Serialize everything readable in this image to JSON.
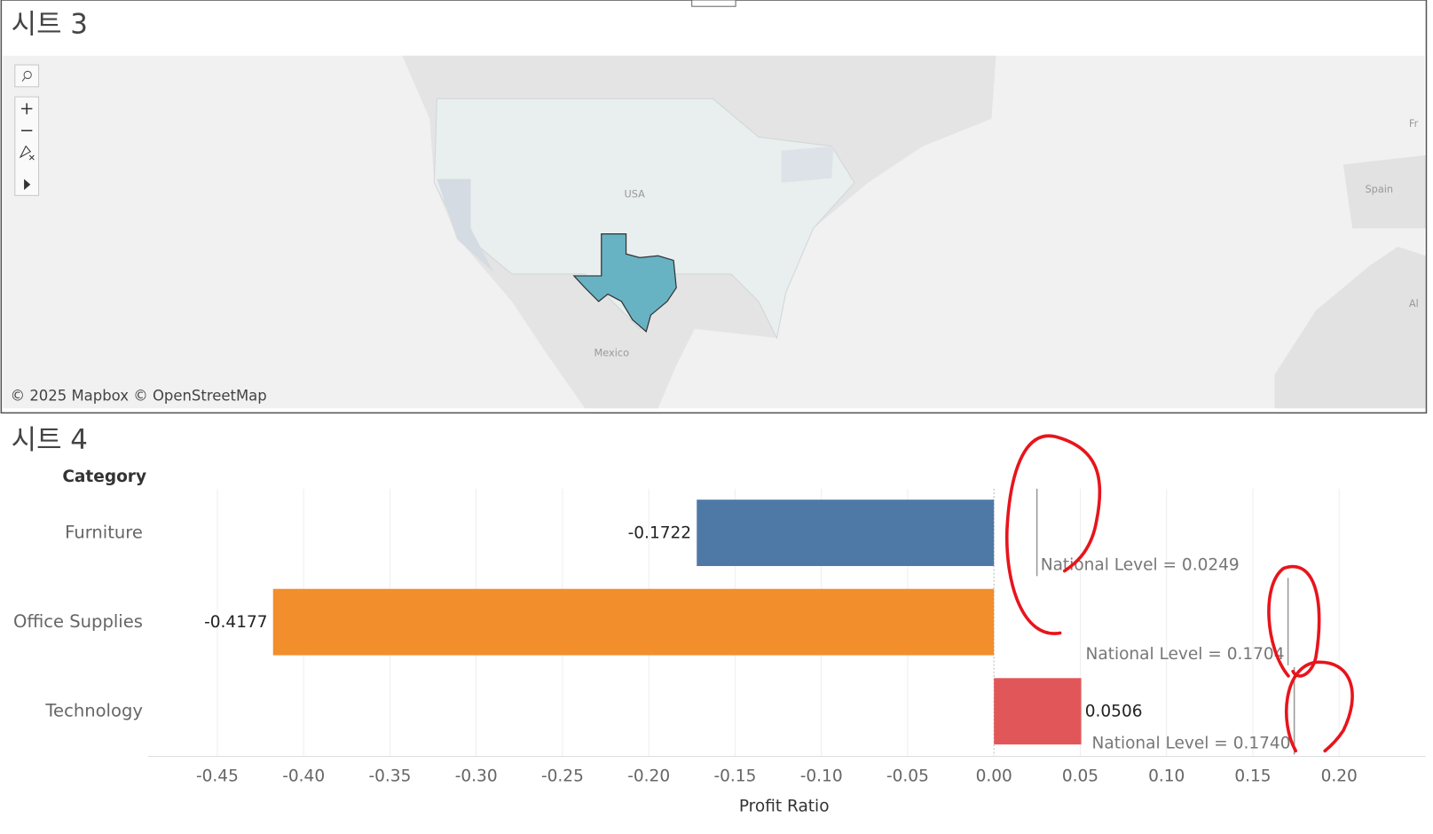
{
  "map_panel": {
    "title": "시트 3",
    "labels": [
      "USA",
      "Mexico",
      "Spain",
      "Fr",
      "Al"
    ],
    "attribution": "© 2025 Mapbox © OpenStreetMap"
  },
  "chart_data": {
    "type": "bar",
    "orientation": "horizontal",
    "title": "시트 4",
    "y_label": "Category",
    "x_label": "Profit Ratio",
    "categories": [
      "Furniture",
      "Office Supplies",
      "Technology"
    ],
    "values": [
      -0.1722,
      -0.4177,
      0.0506
    ],
    "colors": [
      "#4e79a7",
      "#f28e2b",
      "#e15759"
    ],
    "reference_lines": {
      "values": [
        0.0249,
        0.1704,
        0.174
      ],
      "value_labels": [
        "National Level = 0.0249",
        "National Level = 0.1704",
        "National Level = 0.1740"
      ],
      "color": "#999999"
    },
    "xlim": [
      -0.49,
      0.25
    ],
    "xticks": [
      {
        "value": -0.45,
        "label": "-0.45"
      },
      {
        "value": -0.4,
        "label": "-0.40"
      },
      {
        "value": -0.35,
        "label": "-0.35"
      },
      {
        "value": -0.3,
        "label": "-0.30"
      },
      {
        "value": -0.25,
        "label": "-0.25"
      },
      {
        "value": -0.2,
        "label": "-0.20"
      },
      {
        "value": -0.15,
        "label": "-0.15"
      },
      {
        "value": -0.1,
        "label": "-0.10"
      },
      {
        "value": -0.05,
        "label": "-0.05"
      },
      {
        "value": 0,
        "label": "0.00"
      },
      {
        "value": 0.05,
        "label": "0.05"
      },
      {
        "value": 0.1,
        "label": "0.10"
      },
      {
        "value": 0.15,
        "label": "0.15"
      },
      {
        "value": 0.2,
        "label": "0.20"
      }
    ],
    "grid": true
  }
}
